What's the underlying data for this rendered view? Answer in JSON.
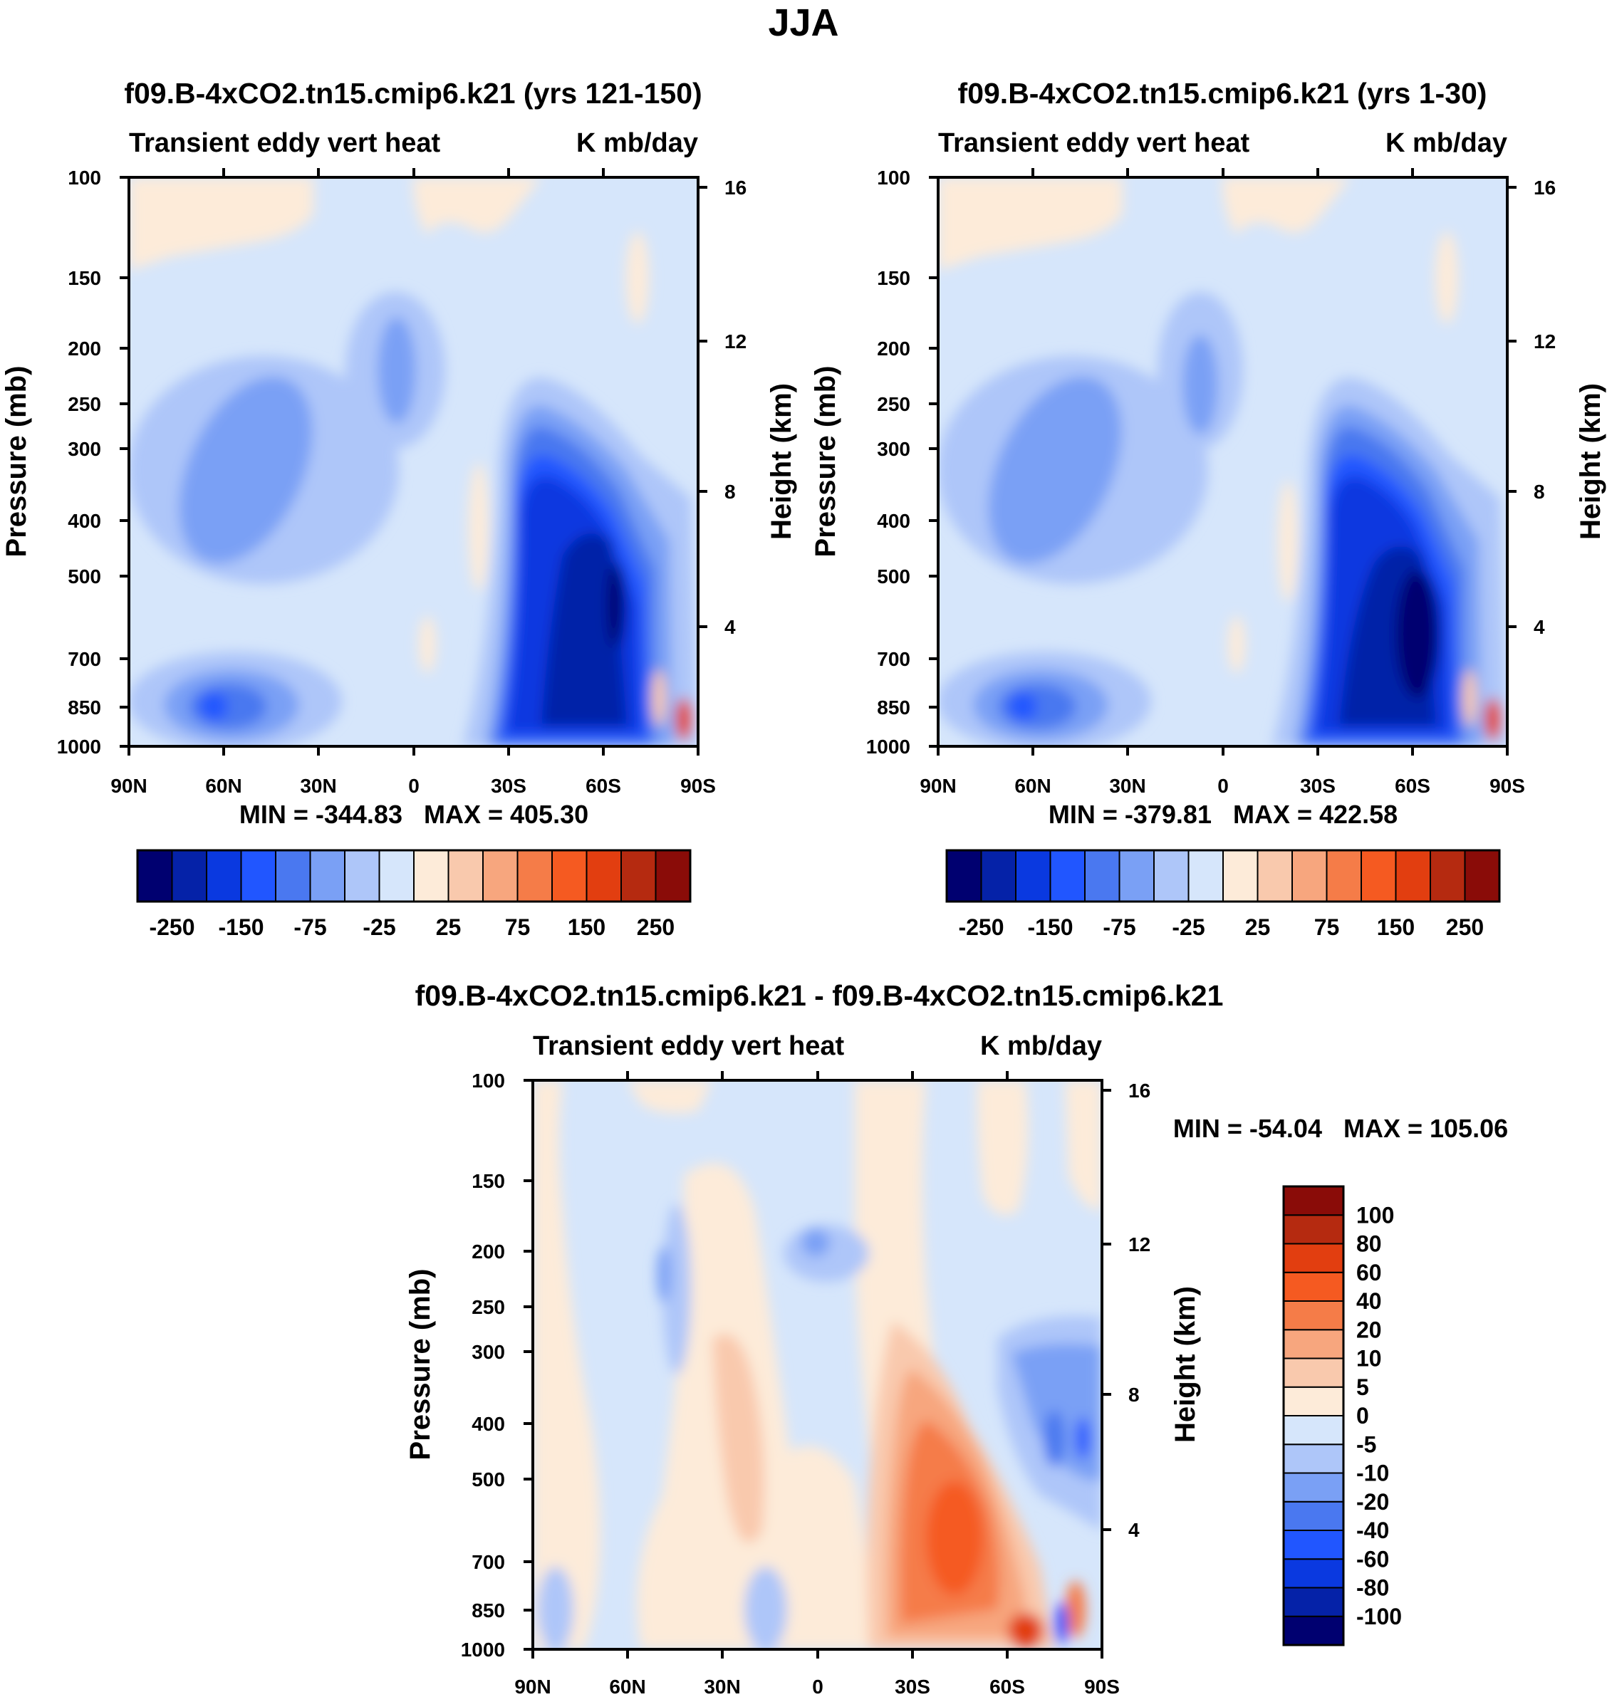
{
  "figure_title": "JJA",
  "panels": [
    {
      "id": "p1",
      "title": "f09.B-4xCO2.tn15.cmip6.k21 (yrs 121-150)",
      "left_label": "Transient eddy vert heat",
      "right_label": "K mb/day",
      "minmax": "MIN = -344.83   MAX = 405.30"
    },
    {
      "id": "p2",
      "title": "f09.B-4xCO2.tn15.cmip6.k21 (yrs 1-30)",
      "left_label": "Transient eddy vert heat",
      "right_label": "K mb/day",
      "minmax": "MIN = -379.81   MAX = 422.58"
    },
    {
      "id": "p3",
      "title": "f09.B-4xCO2.tn15.cmip6.k21 - f09.B-4xCO2.tn15.cmip6.k21",
      "left_label": "Transient eddy vert heat",
      "right_label": "K mb/day",
      "minmax": "MIN = -54.04   MAX = 105.06"
    }
  ],
  "axes": {
    "ylabel": "Pressure (mb)",
    "y2label": "Height (km)",
    "pressure_ticks": [
      "100",
      "150",
      "200",
      "250",
      "300",
      "400",
      "500",
      "700",
      "850",
      "1000"
    ],
    "height_ticks": [
      "16",
      "12",
      "8",
      "4"
    ],
    "lat_ticks": [
      "90N",
      "60N",
      "30N",
      "0",
      "30S",
      "60S",
      "90S"
    ]
  },
  "colorbars": {
    "top": {
      "colors": [
        "#000070",
        "#0522a8",
        "#0a39e0",
        "#2156ff",
        "#4a78f0",
        "#7aa0f5",
        "#aec6f9",
        "#d6e6fb",
        "#fdebd9",
        "#f9c9ad",
        "#f7a67e",
        "#f57c48",
        "#f55a21",
        "#e23e10",
        "#b52a10",
        "#8a0c08"
      ],
      "labels": [
        "-250",
        "-150",
        "-75",
        "-25",
        "25",
        "75",
        "150",
        "250"
      ]
    },
    "diff": {
      "colors": [
        "#000070",
        "#0522a8",
        "#0a39e0",
        "#2156ff",
        "#4a78f0",
        "#7aa0f5",
        "#aec6f9",
        "#d6e6fb",
        "#fdebd9",
        "#f9c9ad",
        "#f7a67e",
        "#f57c48",
        "#f55a21",
        "#e23e10",
        "#b52a10",
        "#8a0c08"
      ],
      "labels": [
        "-100",
        "-80",
        "-60",
        "-40",
        "-20",
        "-10",
        "-5",
        "0",
        "5",
        "10",
        "20",
        "40",
        "60",
        "80",
        "100"
      ]
    }
  },
  "chart_data": [
    {
      "type": "heatmap",
      "title": "f09.B-4xCO2.tn15.cmip6.k21 (yrs 121-150)",
      "variable": "Transient eddy vert heat",
      "units": "K mb/day",
      "x_ticks": [
        "90N",
        "60N",
        "30N",
        "0",
        "30S",
        "60S",
        "90S"
      ],
      "y_ticks_pressure_mb": [
        100,
        150,
        200,
        250,
        300,
        400,
        500,
        700,
        850,
        1000
      ],
      "y2_ticks_height_km": [
        16,
        12,
        8,
        4
      ],
      "contour_levels": [
        -250,
        -200,
        -150,
        -100,
        -75,
        -50,
        -25,
        0,
        25,
        50,
        75,
        100,
        150,
        200,
        250
      ],
      "min": -344.83,
      "max": 405.3
    },
    {
      "type": "heatmap",
      "title": "f09.B-4xCO2.tn15.cmip6.k21 (yrs 1-30)",
      "variable": "Transient eddy vert heat",
      "units": "K mb/day",
      "x_ticks": [
        "90N",
        "60N",
        "30N",
        "0",
        "30S",
        "60S",
        "90S"
      ],
      "y_ticks_pressure_mb": [
        100,
        150,
        200,
        250,
        300,
        400,
        500,
        700,
        850,
        1000
      ],
      "y2_ticks_height_km": [
        16,
        12,
        8,
        4
      ],
      "contour_levels": [
        -250,
        -200,
        -150,
        -100,
        -75,
        -50,
        -25,
        0,
        25,
        50,
        75,
        100,
        150,
        200,
        250
      ],
      "min": -379.81,
      "max": 422.58
    },
    {
      "type": "heatmap",
      "title": "f09.B-4xCO2.tn15.cmip6.k21 - f09.B-4xCO2.tn15.cmip6.k21",
      "variable": "Transient eddy vert heat",
      "units": "K mb/day",
      "x_ticks": [
        "90N",
        "60N",
        "30N",
        "0",
        "30S",
        "60S",
        "90S"
      ],
      "y_ticks_pressure_mb": [
        100,
        150,
        200,
        250,
        300,
        400,
        500,
        700,
        850,
        1000
      ],
      "y2_ticks_height_km": [
        16,
        12,
        8,
        4
      ],
      "contour_levels": [
        -100,
        -80,
        -60,
        -40,
        -20,
        -10,
        -5,
        0,
        5,
        10,
        20,
        40,
        60,
        80,
        100
      ],
      "min": -54.04,
      "max": 105.06
    }
  ]
}
